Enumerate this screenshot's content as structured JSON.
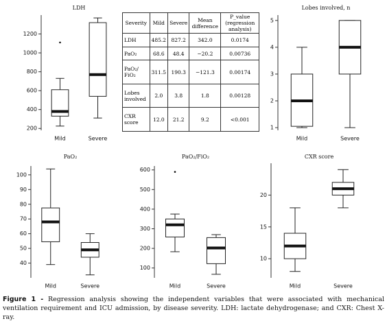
{
  "chart_data": [
    {
      "type": "box",
      "title": "LDH",
      "categories": [
        "Mild",
        "Severe"
      ],
      "boxes": [
        {
          "whisker_low": 225,
          "q1": 330,
          "median": 380,
          "q3": 610,
          "whisker_high": 730,
          "outliers": [
            1110
          ]
        },
        {
          "whisker_low": 310,
          "q1": 540,
          "median": 770,
          "q3": 1320,
          "whisker_high": 1370,
          "outliers": []
        }
      ],
      "ylim": [
        180,
        1400
      ],
      "yticks": [
        200,
        400,
        600,
        800,
        1000,
        1200
      ],
      "color": "#ffffff"
    },
    {
      "type": "box",
      "title": "Lobes involved, n",
      "categories": [
        "Mild",
        "Severe"
      ],
      "boxes": [
        {
          "whisker_low": 1,
          "q1": 1.05,
          "median": 2,
          "q3": 3,
          "whisker_high": 4,
          "outliers": []
        },
        {
          "whisker_low": 1,
          "q1": 3,
          "median": 4,
          "q3": 5,
          "whisker_high": 5,
          "outliers": []
        }
      ],
      "ylim": [
        0.9,
        5.2
      ],
      "yticks": [
        1,
        2,
        3,
        4,
        5
      ],
      "color": "#ffffff"
    },
    {
      "type": "box",
      "title": "PaO₂",
      "categories": [
        "Mild",
        "Severe"
      ],
      "boxes": [
        {
          "whisker_low": 39,
          "q1": 54.5,
          "median": 68,
          "q3": 77.5,
          "whisker_high": 104,
          "outliers": []
        },
        {
          "whisker_low": 32,
          "q1": 44,
          "median": 49,
          "q3": 54,
          "whisker_high": 60,
          "outliers": []
        }
      ],
      "ylim": [
        30,
        106
      ],
      "yticks": [
        40,
        50,
        60,
        70,
        80,
        90,
        100
      ],
      "color": "#ffffff"
    },
    {
      "type": "box",
      "title": "PaO₂/FiO₂",
      "categories": [
        "Mild",
        "Severe"
      ],
      "boxes": [
        {
          "whisker_low": 183,
          "q1": 258,
          "median": 320,
          "q3": 350,
          "whisker_high": 375,
          "outliers": [
            590
          ]
        },
        {
          "whisker_low": 68,
          "q1": 122,
          "median": 202,
          "q3": 255,
          "whisker_high": 270,
          "outliers": []
        }
      ],
      "ylim": [
        50,
        620
      ],
      "yticks": [
        100,
        200,
        300,
        400,
        500,
        600
      ],
      "color": "#ffffff"
    },
    {
      "type": "box",
      "title": "CXR score",
      "categories": [
        "Mild",
        "Severe"
      ],
      "boxes": [
        {
          "whisker_low": 8,
          "q1": 10,
          "median": 12,
          "q3": 14,
          "whisker_high": 18,
          "outliers": []
        },
        {
          "whisker_low": 18,
          "q1": 20,
          "median": 21,
          "q3": 22,
          "whisker_high": 24,
          "outliers": []
        }
      ],
      "ylim": [
        7,
        25
      ],
      "yticks": [
        10,
        15,
        20
      ],
      "color": "#ffffff"
    }
  ],
  "table": {
    "header": [
      "Severity",
      "Mild",
      "Severe",
      "Mean difference",
      "P_value (regression analysis)"
    ],
    "rows": [
      [
        "LDH",
        "485.2",
        "827.2",
        "342.0",
        "0.0174"
      ],
      [
        "PaO₂",
        "68.6",
        "48.4",
        "−20.2",
        "0.00736"
      ],
      [
        "PaO₂/ FiO₂",
        "311.5",
        "190.3",
        "−121.3",
        "0.00174"
      ],
      [
        "Lobes involved",
        "2.0",
        "3.8",
        "1.8",
        "0.00128"
      ],
      [
        "CXR score",
        "12.0",
        "21.2",
        "9.2",
        "<0.001"
      ]
    ]
  },
  "caption": {
    "label": "Figure 1 -",
    "text": "Regression analysis showing the independent variables that were associated with mechanical ventilation requirement and ICU admission, by disease severity. LDH: lactate dehydrogenase; and CXR: Chest X-ray."
  }
}
